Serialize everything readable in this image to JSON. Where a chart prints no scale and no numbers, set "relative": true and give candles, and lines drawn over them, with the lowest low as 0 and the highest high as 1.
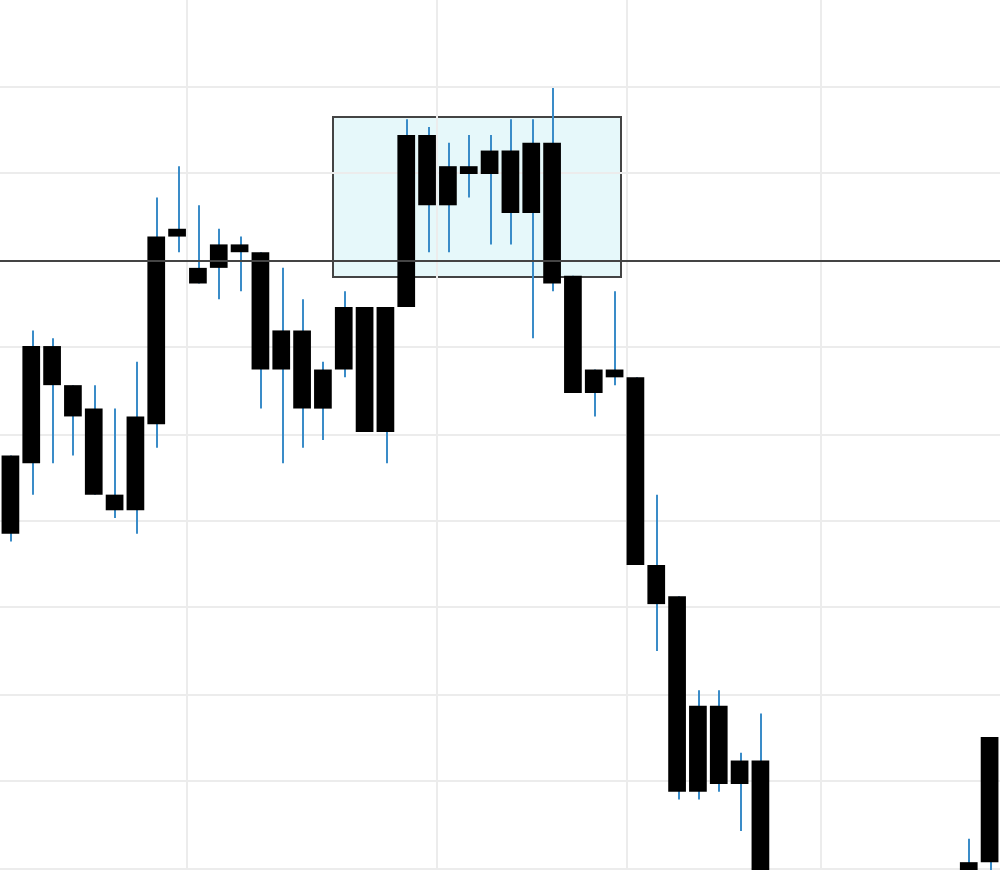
{
  "chart_data": {
    "type": "candlestick",
    "relative": true,
    "grid": true,
    "legend": false,
    "color": "#000000",
    "categories": [
      null,
      null,
      null,
      null,
      null,
      null,
      null,
      null,
      null,
      null,
      null,
      null,
      null,
      null,
      null,
      null,
      null,
      null,
      null,
      null,
      null,
      null,
      null,
      null,
      null,
      null,
      null,
      null,
      null,
      null,
      null,
      null,
      null,
      null,
      null,
      null,
      null,
      null,
      null,
      null,
      null,
      null,
      null,
      null,
      null,
      null,
      null,
      null
    ],
    "ohlc": [
      [
        0.53,
        0.53,
        0.42,
        0.43
      ],
      [
        0.67,
        0.69,
        0.48,
        0.52
      ],
      [
        0.67,
        0.68,
        0.52,
        0.62
      ],
      [
        0.62,
        0.62,
        0.53,
        0.58
      ],
      [
        0.59,
        0.62,
        0.48,
        0.48
      ],
      [
        0.48,
        0.59,
        0.45,
        0.46
      ],
      [
        0.58,
        0.65,
        0.43,
        0.46
      ],
      [
        0.81,
        0.86,
        0.54,
        0.57
      ],
      [
        0.82,
        0.9,
        0.79,
        0.81
      ],
      [
        0.77,
        0.85,
        0.75,
        0.75
      ],
      [
        0.8,
        0.82,
        0.73,
        0.77
      ],
      [
        0.8,
        0.81,
        0.74,
        0.79
      ],
      [
        0.79,
        0.79,
        0.59,
        0.64
      ],
      [
        0.69,
        0.77,
        0.52,
        0.64
      ],
      [
        0.69,
        0.73,
        0.54,
        0.59
      ],
      [
        0.64,
        0.65,
        0.55,
        0.59
      ],
      [
        0.72,
        0.74,
        0.63,
        0.64
      ],
      [
        0.72,
        0.72,
        0.56,
        0.56
      ],
      [
        0.72,
        0.72,
        0.52,
        0.56
      ],
      [
        0.94,
        0.96,
        0.72,
        0.72
      ],
      [
        0.94,
        0.95,
        0.79,
        0.85
      ],
      [
        0.9,
        0.93,
        0.79,
        0.85
      ],
      [
        0.9,
        0.94,
        0.86,
        0.89
      ],
      [
        0.92,
        0.94,
        0.8,
        0.89
      ],
      [
        0.92,
        0.96,
        0.8,
        0.84
      ],
      [
        0.93,
        0.96,
        0.68,
        0.84
      ],
      [
        0.93,
        1.0,
        0.74,
        0.75
      ],
      [
        0.76,
        0.76,
        0.61,
        0.61
      ],
      [
        0.64,
        0.64,
        0.58,
        0.61
      ],
      [
        0.64,
        0.74,
        0.62,
        0.63
      ],
      [
        0.63,
        0.63,
        0.39,
        0.39
      ],
      [
        0.39,
        0.48,
        0.28,
        0.34
      ],
      [
        0.35,
        0.35,
        0.09,
        0.1
      ],
      [
        0.21,
        0.23,
        0.09,
        0.1
      ],
      [
        0.21,
        0.23,
        0.1,
        0.11
      ],
      [
        0.14,
        0.15,
        0.05,
        0.11
      ],
      [
        0.14,
        0.2,
        0,
        0
      ],
      null,
      null,
      null,
      null,
      null,
      null,
      null,
      null,
      null,
      [
        0.01,
        0.04,
        0,
        0
      ],
      [
        0.17,
        0.17,
        0,
        0.01
      ]
    ],
    "ref_lines": [
      {
        "axis": "y",
        "value": 0.78,
        "color": "#444444"
      }
    ]
  }
}
